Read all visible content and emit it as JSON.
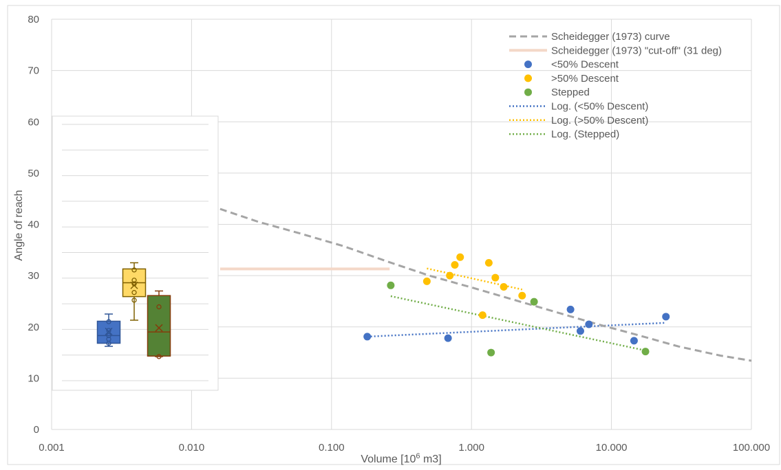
{
  "chart_data": {
    "type": "scatter",
    "xlabel": "Volume [10",
    "xlabel_sup": "6",
    "xlabel_tail": " m3]",
    "ylabel": "Angle of reach",
    "x_scale": "log",
    "xlim": [
      0.001,
      100
    ],
    "ylim": [
      0,
      80
    ],
    "x_ticks": [
      0.001,
      0.01,
      0.1,
      1,
      10,
      100
    ],
    "x_tick_labels": [
      "0.001",
      "0.010",
      "0.100",
      "1.000",
      "10.000",
      "100.000"
    ],
    "y_ticks": [
      0,
      10,
      20,
      30,
      40,
      50,
      60,
      70,
      80
    ],
    "y_tick_labels": [
      "0",
      "10",
      "20",
      "30",
      "40",
      "50",
      "60",
      "70",
      "80"
    ],
    "grid": true,
    "legend_position": "top-right",
    "series": [
      {
        "name": "Scheidegger (1973) curve",
        "kind": "dashed-line",
        "color": "#A5A5A5",
        "x": [
          0.016,
          0.03,
          0.06,
          0.12,
          0.26,
          0.5,
          1,
          2,
          4,
          8,
          15,
          30,
          60,
          100
        ],
        "y": [
          43,
          40.5,
          38.2,
          35.8,
          32.6,
          30,
          27.7,
          25.3,
          22.9,
          20.5,
          18.5,
          16.2,
          14.4,
          13.4
        ]
      },
      {
        "name": "Scheidegger (1973) \"cut-off\" (31 deg)",
        "kind": "solid-line",
        "color": "#F4D8C8",
        "x": [
          0.016,
          0.26
        ],
        "y": [
          31.3,
          31.3
        ]
      },
      {
        "name": "<50% Descent",
        "kind": "points",
        "color": "#4472C4",
        "x": [
          0.18,
          0.68,
          5.1,
          6.0,
          6.9,
          14.5,
          24.5
        ],
        "y": [
          18.1,
          17.8,
          23.4,
          19.2,
          20.5,
          17.3,
          22.0
        ]
      },
      {
        "name": ">50% Descent",
        "kind": "points",
        "color": "#FFC000",
        "x": [
          0.48,
          0.7,
          0.76,
          0.83,
          1.2,
          1.33,
          1.48,
          1.7,
          2.3
        ],
        "y": [
          28.9,
          30.0,
          32.1,
          33.6,
          22.3,
          32.5,
          29.6,
          27.8,
          26.1
        ]
      },
      {
        "name": "Stepped",
        "kind": "points",
        "color": "#70AD47",
        "x": [
          0.265,
          1.38,
          2.8,
          17.5
        ],
        "y": [
          28.1,
          15.0,
          24.9,
          15.2
        ]
      },
      {
        "name": "Log. (<50% Descent)",
        "kind": "dotted-line",
        "color": "#4472C4",
        "x": [
          0.18,
          24.5
        ],
        "y": [
          18.1,
          20.8
        ]
      },
      {
        "name": "Log. (>50% Descent)",
        "kind": "dotted-line",
        "color": "#FFC000",
        "x": [
          0.48,
          2.3
        ],
        "y": [
          31.4,
          27.3
        ]
      },
      {
        "name": "Log. (Stepped)",
        "kind": "dotted-line",
        "color": "#70AD47",
        "x": [
          0.265,
          17.5
        ],
        "y": [
          26.0,
          15.4
        ]
      }
    ],
    "inset_boxplot": {
      "type": "box",
      "ylim": [
        10,
        60
      ],
      "boxes": [
        {
          "color": "#4472C4",
          "edge": "#2F5597",
          "min": 16.7,
          "q1": 17.3,
          "median": 18.8,
          "q3": 21.6,
          "max": 23.0,
          "mean": 19.6,
          "points": [
            17.3,
            18.1,
            18.8,
            19.8,
            21.5
          ]
        },
        {
          "color": "#FFD966",
          "edge": "#7F6000",
          "min": 21.8,
          "q1": 26.4,
          "median": 29.1,
          "q3": 31.8,
          "max": 33.0,
          "mean": 28.6,
          "points": [
            25.7,
            27.2,
            28.9,
            29.6,
            31.6
          ]
        },
        {
          "color": "#548235",
          "edge": "#843C0C",
          "min": 14.7,
          "q1": 14.8,
          "median": 19.5,
          "q3": 26.6,
          "max": 27.5,
          "mean": 20.3,
          "points": [
            14.7,
            24.4
          ]
        }
      ]
    }
  }
}
